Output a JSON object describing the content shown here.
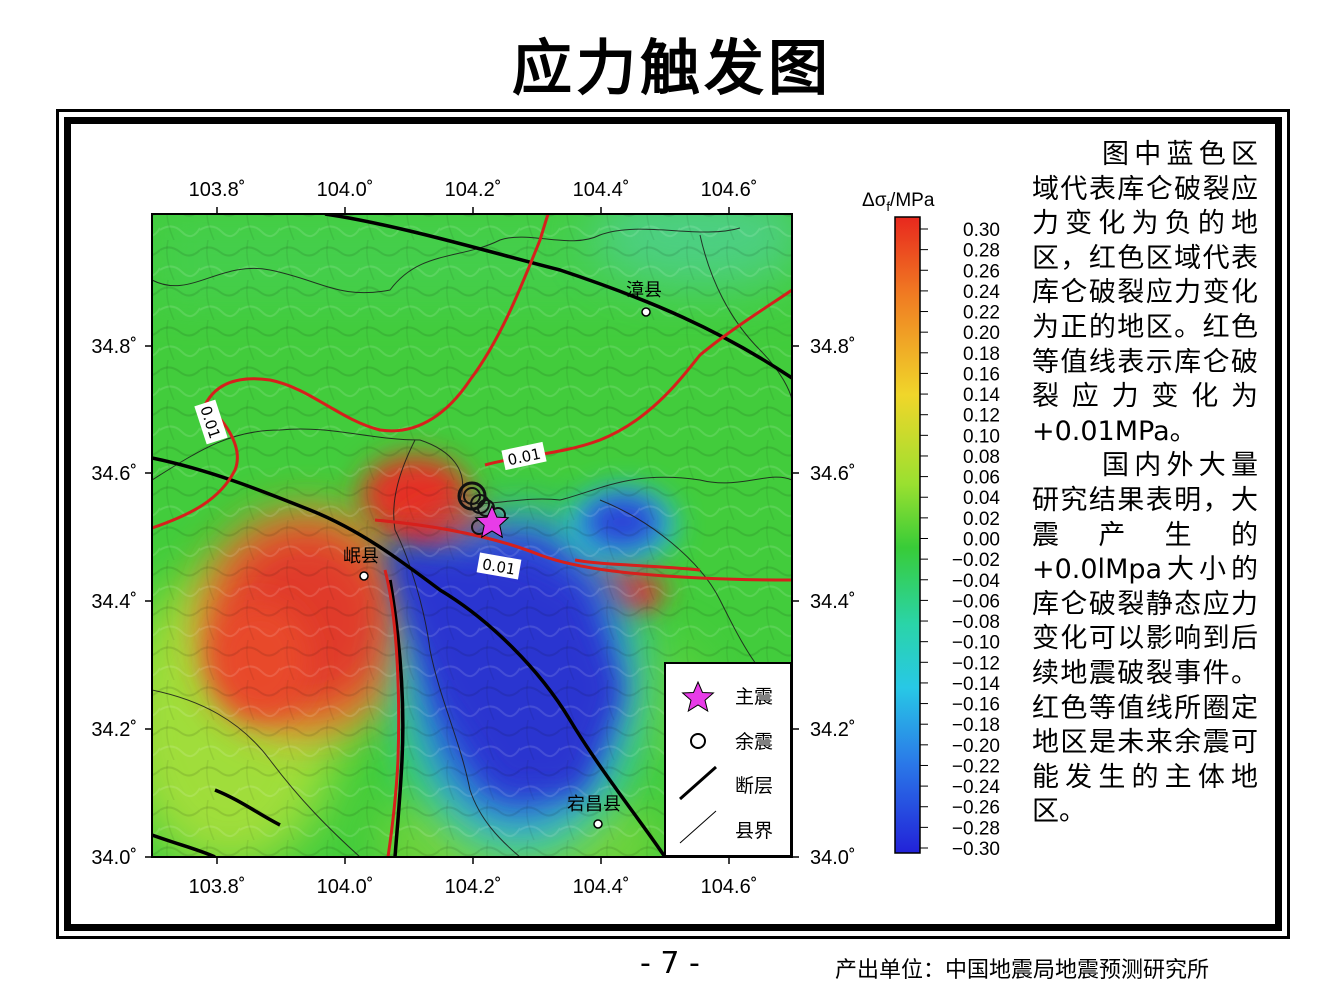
{
  "title": "应力触发图",
  "map": {
    "lon_ticks": [
      "103.8˚",
      "104.0˚",
      "104.2˚",
      "104.4˚",
      "104.6˚"
    ],
    "lat_ticks": [
      "34.8˚",
      "34.6˚",
      "34.4˚",
      "34.2˚",
      "34.0˚"
    ],
    "contour_labels": [
      "0.01",
      "0.01",
      "0.01"
    ],
    "places": {
      "zhangxian": "漳县",
      "minxian": "岷县",
      "dangchang": "宕昌县"
    },
    "colors": {
      "positive": "#e8322a",
      "negative": "#2a3fd8",
      "neutral": "#3ecf3e",
      "contour": "#d6201c",
      "mainshock": "#e83ce8"
    }
  },
  "colorbar": {
    "title_prefix": "Δσ",
    "title_sub": "f",
    "title_suffix": "/MPa",
    "labels": [
      "0.30",
      "0.28",
      "0.26",
      "0.24",
      "0.22",
      "0.20",
      "0.18",
      "0.16",
      "0.14",
      "0.12",
      "0.10",
      "0.08",
      "0.06",
      "0.04",
      "0.02",
      "0.00",
      "−0.02",
      "−0.04",
      "−0.06",
      "−0.08",
      "−0.10",
      "−0.12",
      "−0.14",
      "−0.16",
      "−0.18",
      "−0.20",
      "−0.22",
      "−0.24",
      "−0.26",
      "−0.28",
      "−0.30"
    ]
  },
  "legend": {
    "mainshock": "主震",
    "aftershock": "余震",
    "fault": "断层",
    "county_border": "县界"
  },
  "description": {
    "p1_a": "图中蓝色区域代表库仑破裂应力变化为负的地区，红色区域代表库仑破裂应力变化为正的地区。红色等值线表示库仑破裂应力变化为",
    "p1_b": "+0.01MPa",
    "p1_c": "。",
    "p2_a": "国内外大量研究结果表明，大震产生的",
    "p2_b": "+0.0lMpa",
    "p2_c": "大小的库仑破裂静态应力变化可以影响到后续地震破裂事件。红色等值线所圈定地区是未来余震可能发生的主体地区。"
  },
  "page_number": "- 7 -",
  "footer": "产出单位：中国地震局地震预测研究所"
}
